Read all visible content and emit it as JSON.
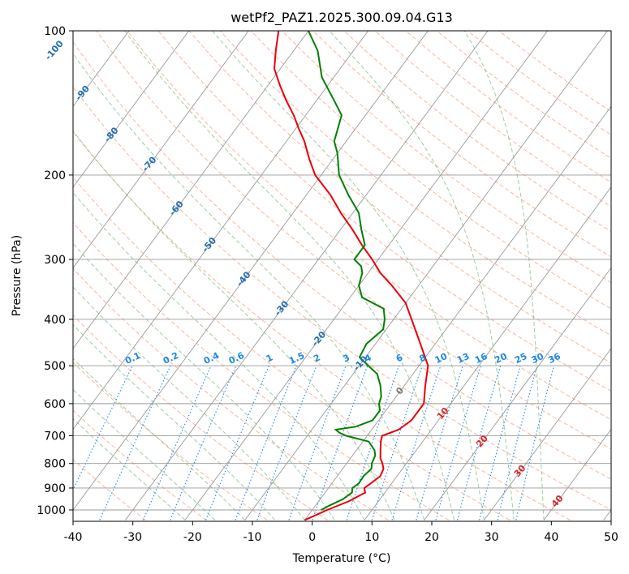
{
  "chart_data": {
    "type": "skewt",
    "title": "wetPf2_PAZ1.2025.300.09.04.G13",
    "xlabel": "Temperature (°C)",
    "ylabel": "Pressure (hPa)",
    "xlim": [
      -40,
      50
    ],
    "ylim": [
      1050,
      100
    ],
    "xticks": [
      -40,
      -30,
      -20,
      -10,
      0,
      10,
      20,
      30,
      40,
      50
    ],
    "yticks": [
      100,
      200,
      300,
      400,
      500,
      600,
      700,
      800,
      900,
      1000
    ],
    "grid": true,
    "temperature": {
      "name": "Temperature",
      "color": "#e8000b",
      "points": [
        [
          1050,
          0
        ],
        [
          1000,
          2.5
        ],
        [
          960,
          5
        ],
        [
          920,
          6.7
        ],
        [
          900,
          6
        ],
        [
          880,
          6.5
        ],
        [
          850,
          7.2
        ],
        [
          820,
          6.8
        ],
        [
          800,
          6
        ],
        [
          780,
          5
        ],
        [
          750,
          4
        ],
        [
          720,
          3
        ],
        [
          700,
          2.5
        ],
        [
          680,
          4.5
        ],
        [
          650,
          5.5
        ],
        [
          600,
          5.5
        ],
        [
          550,
          3.5
        ],
        [
          500,
          1.5
        ],
        [
          450,
          -2.5
        ],
        [
          400,
          -7
        ],
        [
          370,
          -10
        ],
        [
          340,
          -14.5
        ],
        [
          320,
          -18
        ],
        [
          300,
          -21
        ],
        [
          280,
          -24.5
        ],
        [
          260,
          -28
        ],
        [
          240,
          -32
        ],
        [
          220,
          -36
        ],
        [
          200,
          -41
        ],
        [
          185,
          -44
        ],
        [
          170,
          -47
        ],
        [
          160,
          -49.5
        ],
        [
          150,
          -52
        ],
        [
          140,
          -55
        ],
        [
          130,
          -58
        ],
        [
          120,
          -61
        ],
        [
          110,
          -63
        ],
        [
          100,
          -65
        ]
      ]
    },
    "dewpoint": {
      "name": "Dewpoint",
      "color": "#008000",
      "points": [
        [
          1000,
          1.5
        ],
        [
          980,
          2.3
        ],
        [
          950,
          3.8
        ],
        [
          920,
          4.5
        ],
        [
          900,
          4
        ],
        [
          880,
          4.5
        ],
        [
          850,
          4.4
        ],
        [
          820,
          4.8
        ],
        [
          800,
          4.2
        ],
        [
          770,
          3.8
        ],
        [
          750,
          3
        ],
        [
          720,
          1
        ],
        [
          700,
          -3.5
        ],
        [
          690,
          -5
        ],
        [
          680,
          -6
        ],
        [
          670,
          -3
        ],
        [
          650,
          -1
        ],
        [
          620,
          -1
        ],
        [
          600,
          -2
        ],
        [
          580,
          -2.5
        ],
        [
          550,
          -4
        ],
        [
          520,
          -6
        ],
        [
          500,
          -8.5
        ],
        [
          480,
          -11
        ],
        [
          450,
          -11.5
        ],
        [
          420,
          -10.5
        ],
        [
          400,
          -11.5
        ],
        [
          380,
          -13
        ],
        [
          360,
          -18
        ],
        [
          340,
          -20
        ],
        [
          320,
          -21
        ],
        [
          310,
          -22
        ],
        [
          300,
          -24
        ],
        [
          280,
          -24
        ],
        [
          260,
          -26.5
        ],
        [
          240,
          -29
        ],
        [
          220,
          -33
        ],
        [
          200,
          -37
        ],
        [
          180,
          -40
        ],
        [
          170,
          -42
        ],
        [
          150,
          -44
        ],
        [
          140,
          -47
        ],
        [
          125,
          -52
        ],
        [
          110,
          -56
        ],
        [
          100,
          -60
        ]
      ]
    },
    "isotherm_labels": [
      "-100",
      "-90",
      "-80",
      "-70",
      "-60",
      "-50",
      "-40",
      "-30",
      "-20",
      "-10",
      "0",
      "10",
      "20",
      "30",
      "40"
    ],
    "mixing_ratio_labels": [
      "0.1",
      "0.2",
      "0.4",
      "0.6",
      "1",
      "1.5",
      "2",
      "3",
      "4",
      "6",
      "8",
      "10",
      "13",
      "16",
      "20",
      "25",
      "30",
      "36"
    ]
  }
}
